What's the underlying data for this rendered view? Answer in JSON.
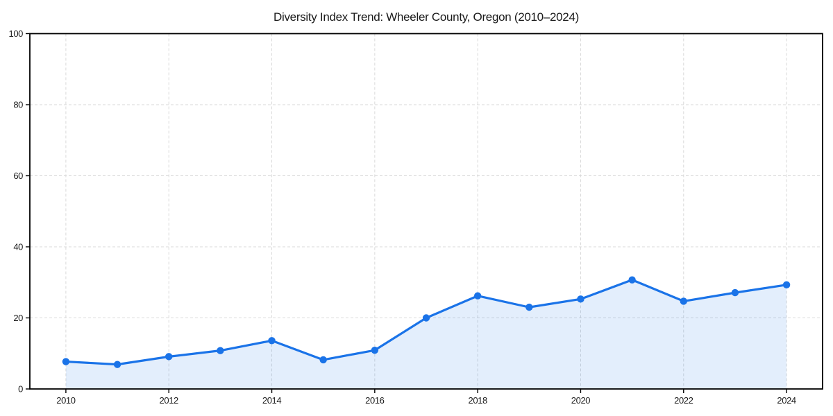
{
  "page": {
    "background_color": "#ffffff"
  },
  "chart_data": {
    "type": "area",
    "title": "Diversity Index Trend: Wheeler County, Oregon (2010–2024)",
    "series_name": "Diversity Index",
    "x": [
      2010,
      2011,
      2012,
      2013,
      2014,
      2015,
      2016,
      2017,
      2018,
      2019,
      2020,
      2021,
      2022,
      2023,
      2024
    ],
    "values": [
      7.7,
      6.9,
      9.1,
      10.8,
      13.6,
      8.2,
      10.9,
      20.0,
      26.2,
      23.0,
      25.3,
      30.7,
      24.7,
      27.1,
      29.3
    ],
    "xlabel": "",
    "ylabel": "",
    "xlim": [
      2009.3,
      2024.7
    ],
    "ylim": [
      0,
      100
    ],
    "xticks": [
      2010,
      2012,
      2014,
      2016,
      2018,
      2020,
      2022,
      2024
    ],
    "yticks": [
      0,
      20,
      40,
      60,
      80,
      100
    ],
    "grid": true,
    "grid_style": "dashed",
    "legend": false,
    "marker": "circle",
    "colors": {
      "line": "#1a73e8",
      "marker": "#1a73e8",
      "fill": "#1a73e8",
      "fill_opacity": 0.12,
      "gridline": "#d9d9d9",
      "axis": "#000000",
      "text": "#1a1a1a",
      "background": "#ffffff"
    }
  }
}
